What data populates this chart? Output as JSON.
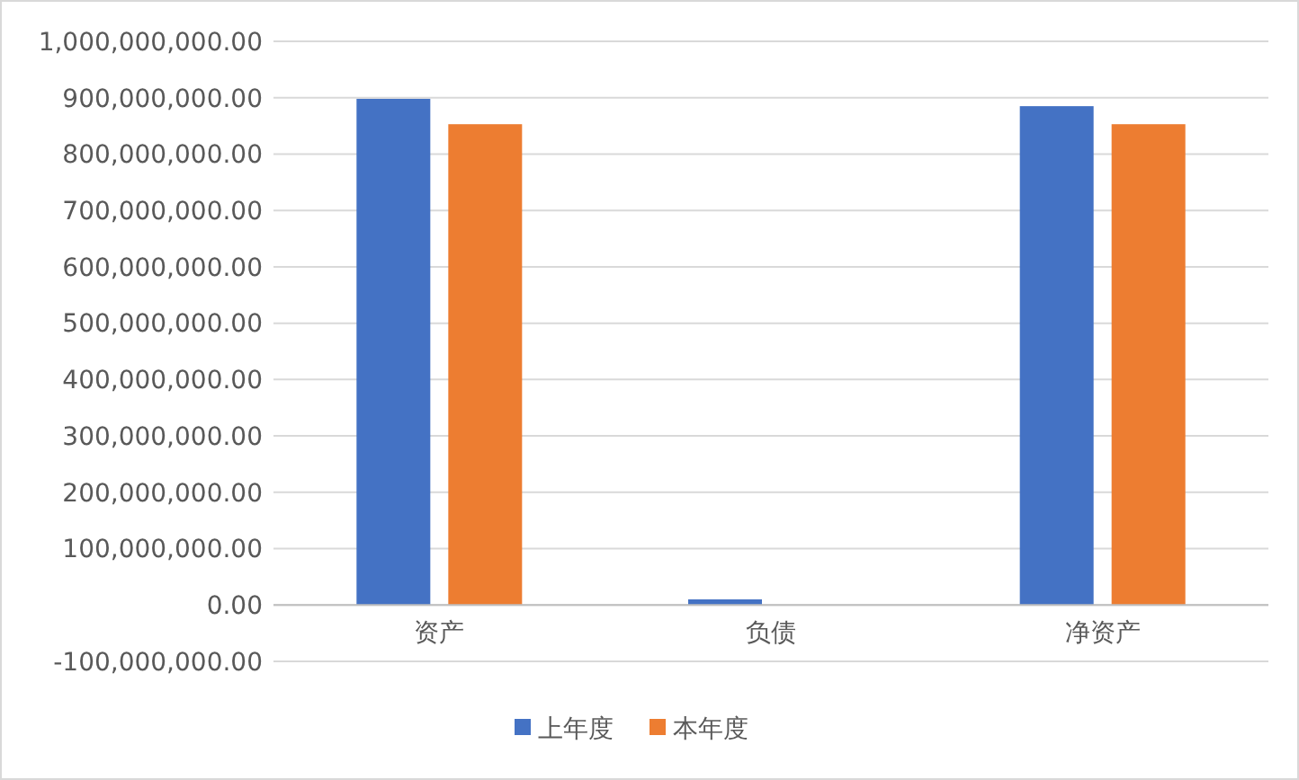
{
  "chart_data": {
    "type": "bar",
    "categories": [
      "资产",
      "负债",
      "净资产"
    ],
    "series": [
      {
        "name": "上年度",
        "color": "#4472c4",
        "values": [
          898000000,
          10000000,
          885000000
        ]
      },
      {
        "name": "本年度",
        "color": "#ed7d31",
        "values": [
          853000000,
          0,
          853000000
        ]
      }
    ],
    "ylim": [
      -100000000,
      1000000000
    ],
    "yticks": [
      {
        "value": -100000000,
        "label": "-100,000,000.00"
      },
      {
        "value": 0,
        "label": "0.00"
      },
      {
        "value": 100000000,
        "label": "100,000,000.00"
      },
      {
        "value": 200000000,
        "label": "200,000,000.00"
      },
      {
        "value": 300000000,
        "label": "300,000,000.00"
      },
      {
        "value": 400000000,
        "label": "400,000,000.00"
      },
      {
        "value": 500000000,
        "label": "500,000,000.00"
      },
      {
        "value": 600000000,
        "label": "600,000,000.00"
      },
      {
        "value": 700000000,
        "label": "700,000,000.00"
      },
      {
        "value": 800000000,
        "label": "800,000,000.00"
      },
      {
        "value": 900000000,
        "label": "900,000,000.00"
      },
      {
        "value": 1000000000,
        "label": "1,000,000,000.00"
      }
    ],
    "grid": "y",
    "legend": "bottom"
  }
}
